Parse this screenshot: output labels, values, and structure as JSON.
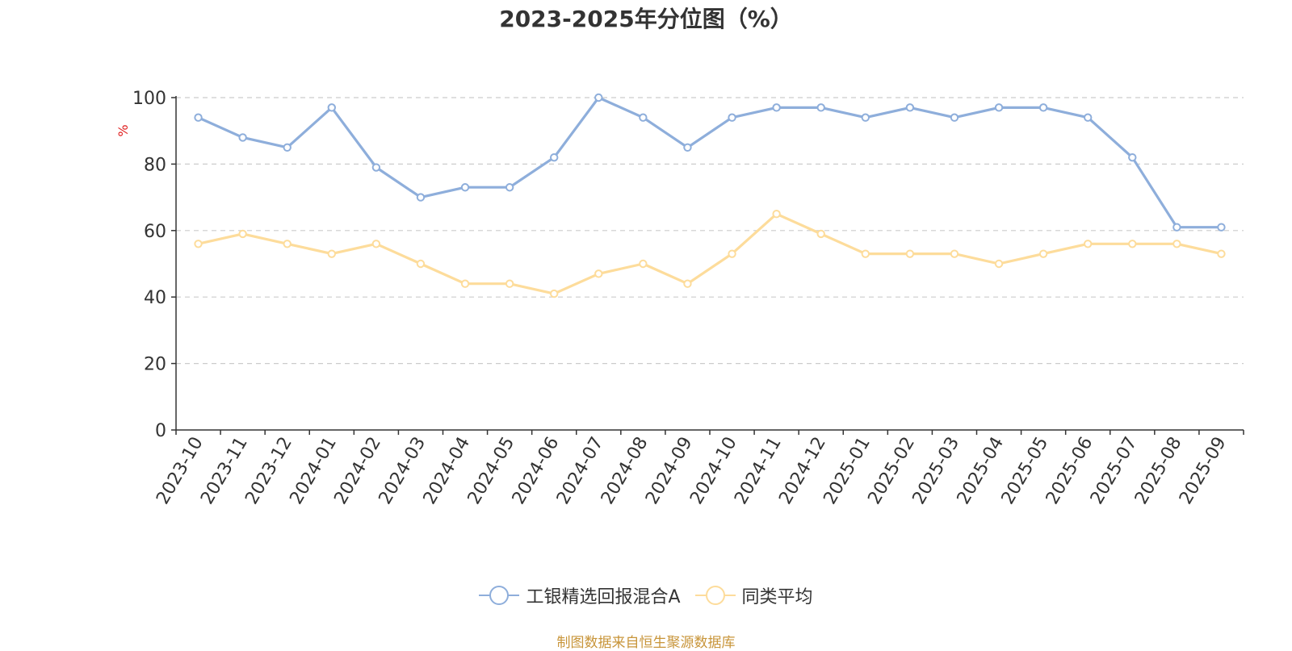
{
  "chart_data": {
    "type": "line",
    "title": "2023-2025年分位图（%）",
    "ylabel": "%",
    "ylim": [
      0,
      100
    ],
    "yticks": [
      "0",
      "20",
      "40",
      "60",
      "80",
      "100"
    ],
    "grid": true,
    "legend_position": "bottom",
    "categories": [
      "2023-10",
      "2023-11",
      "2023-12",
      "2024-01",
      "2024-02",
      "2024-03",
      "2024-04",
      "2024-05",
      "2024-06",
      "2024-07",
      "2024-08",
      "2024-09",
      "2024-10",
      "2024-11",
      "2024-12",
      "2025-01",
      "2025-02",
      "2025-03",
      "2025-04",
      "2025-05",
      "2025-06",
      "2025-07",
      "2025-08",
      "2025-09"
    ],
    "series": [
      {
        "name": "工银精选回报混合A",
        "color": "#8eaedb",
        "values": [
          94,
          88,
          85,
          97,
          79,
          70,
          73,
          73,
          82,
          100,
          94,
          85,
          94,
          97,
          97,
          94,
          97,
          94,
          97,
          97,
          94,
          82,
          61,
          61
        ]
      },
      {
        "name": "同类平均",
        "color": "#fddc9b",
        "values": [
          56,
          59,
          56,
          53,
          56,
          50,
          44,
          44,
          41,
          47,
          50,
          44,
          53,
          65,
          59,
          53,
          53,
          53,
          50,
          53,
          56,
          56,
          56,
          53
        ]
      }
    ],
    "source": "制图数据来自恒生聚源数据库"
  }
}
